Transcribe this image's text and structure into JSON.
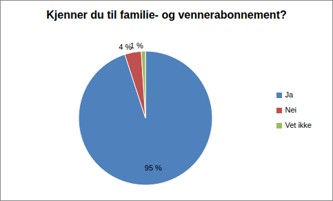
{
  "chart_data": {
    "type": "pie",
    "title": "Kjenner du til familie- og vennerabonnement?",
    "categories": [
      "Ja",
      "Nei",
      "Vet ikke"
    ],
    "values": [
      95,
      4,
      1
    ],
    "value_labels": [
      "95 %",
      "4 %",
      "1 %"
    ],
    "colors": [
      "#4f81bd",
      "#c0504d",
      "#9bbb59"
    ],
    "data_labels": true,
    "legend": "right"
  }
}
